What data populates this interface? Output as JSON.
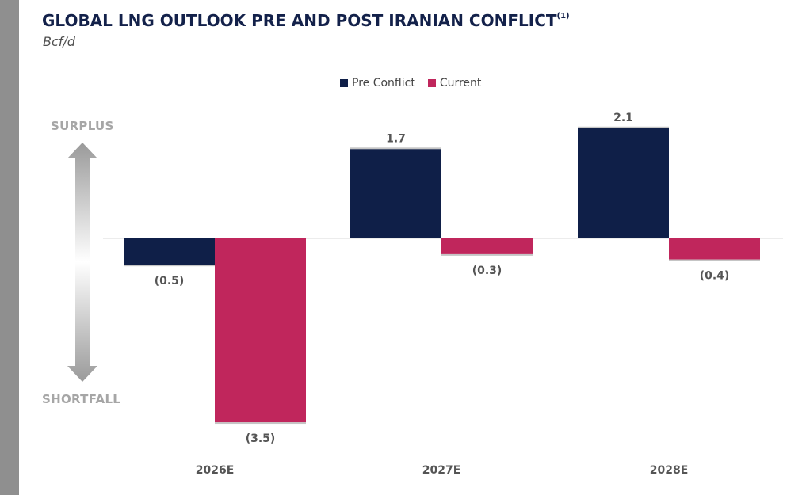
{
  "header": {
    "title": "GLOBAL LNG OUTLOOK PRE AND POST IRANIAN CONFLICT",
    "footnote_marker": "(1)",
    "unit": "Bcf/d"
  },
  "axis_labels": {
    "surplus": "SURPLUS",
    "shortfall": "SHORTFALL"
  },
  "colors": {
    "pre_conflict": "#0f1f48",
    "current": "#c0265c",
    "title": "#13214a",
    "side_label": "#a6a6a6",
    "category_label": "#555555",
    "value_label": "#555555"
  },
  "chart_data": {
    "type": "bar",
    "title": "GLOBAL LNG OUTLOOK PRE AND POST IRANIAN CONFLICT",
    "ylabel": "Bcf/d",
    "xlabel": "",
    "categories": [
      "2026E",
      "2027E",
      "2028E"
    ],
    "series": [
      {
        "name": "Pre Conflict",
        "values": [
          -0.5,
          1.7,
          2.1
        ],
        "labels": [
          "(0.5)",
          "1.7",
          "2.1"
        ]
      },
      {
        "name": "Current",
        "values": [
          -3.5,
          -0.3,
          -0.4
        ],
        "labels": [
          "(3.5)",
          "(0.3)",
          "(0.4)"
        ]
      }
    ],
    "ylim": [
      -3.6,
      2.2
    ],
    "legend": "top-center",
    "grid": false,
    "baseline": 0
  }
}
